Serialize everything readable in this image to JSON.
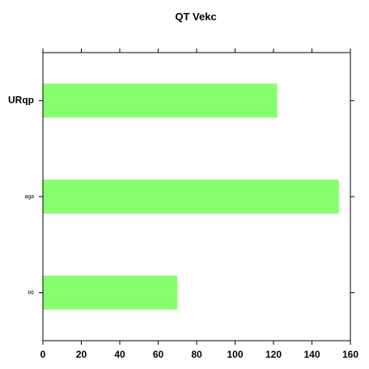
{
  "chart_data": {
    "type": "bar",
    "orientation": "horizontal",
    "title": "QT Vekc",
    "xlabel": "",
    "ylabel": "",
    "categories": [
      "URqp",
      "aga",
      "∞"
    ],
    "values": [
      122,
      154,
      70
    ],
    "xlim": [
      0,
      160
    ],
    "xticks": [
      0,
      20,
      40,
      60,
      80,
      100,
      120,
      140,
      160
    ],
    "grid": false,
    "legend": "none",
    "colors": {
      "bar": "#88ff6e",
      "axis": "#000000",
      "background": "#ffffff"
    }
  }
}
